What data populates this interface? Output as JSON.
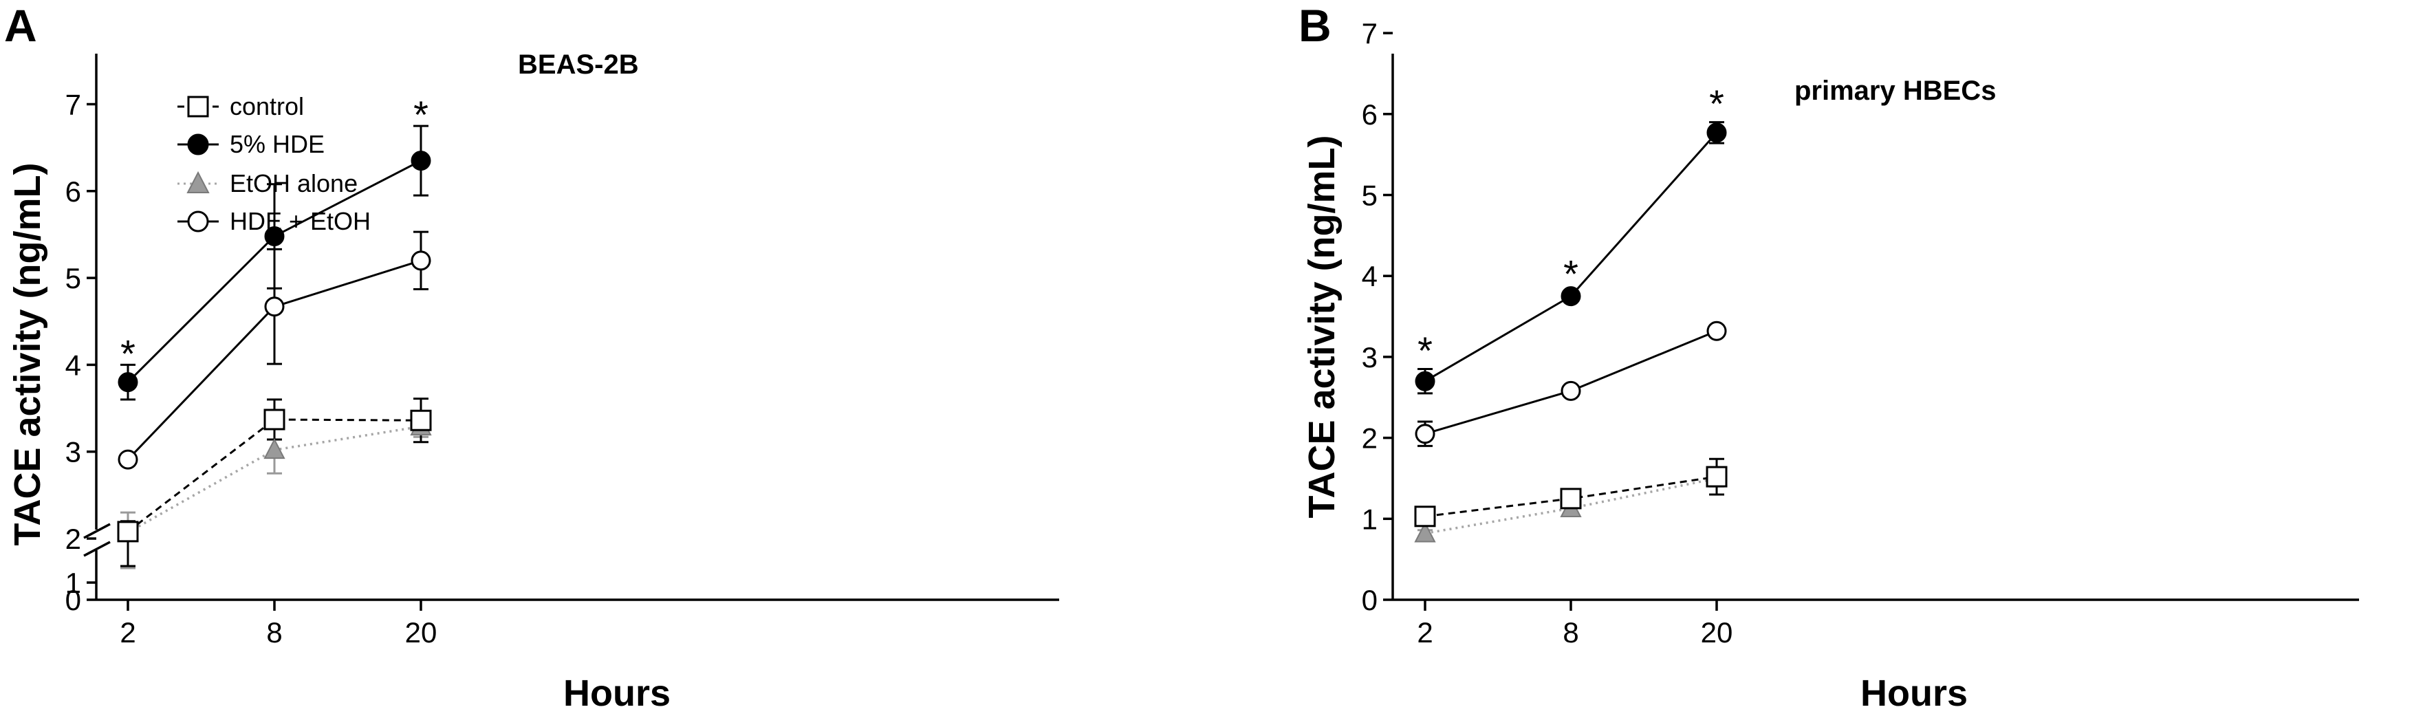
{
  "chart_data": [
    {
      "type": "line",
      "panel_label": "A",
      "title": "BEAS-2B",
      "xlabel": "Hours",
      "ylabel": "TACE activity (ng/mL)",
      "x": [
        2,
        8,
        20
      ],
      "x_tick_labels": [
        "2",
        "8",
        "20"
      ],
      "y_ticks_lower": [
        0,
        1
      ],
      "y_ticks_upper": [
        2,
        3,
        4,
        5,
        6,
        7
      ],
      "y_axis_break": true,
      "grid": false,
      "legend": {
        "placement": "top-left",
        "entries": [
          "control",
          "5% HDE",
          "EtOH alone",
          "HDE + EtOH"
        ]
      },
      "series": [
        {
          "name": "control",
          "marker": "open-square",
          "line": "dashed",
          "color": "#000000",
          "values": [
            2.08,
            3.37,
            3.36
          ],
          "errors": [
            0.12,
            0.23,
            0.25
          ]
        },
        {
          "name": "5% HDE",
          "marker": "filled-circle",
          "line": "solid",
          "color": "#000000",
          "values": [
            3.8,
            5.48,
            6.35
          ],
          "errors": [
            0.2,
            0.6,
            0.4
          ]
        },
        {
          "name": "EtOH alone",
          "marker": "gray-triangle",
          "line": "dotted",
          "color": "#a6a6a6",
          "values": [
            2.07,
            3.02,
            3.29
          ],
          "errors": [
            0.23,
            0.27,
            0.12
          ]
        },
        {
          "name": "HDE + EtOH",
          "marker": "open-circle",
          "line": "solid",
          "color": "#000000",
          "values": [
            2.91,
            4.67,
            5.2
          ],
          "errors": [
            0.03,
            0.66,
            0.33
          ]
        }
      ],
      "annotations": [
        {
          "text": "*",
          "x": 2,
          "y": 4.15
        },
        {
          "text": "*",
          "x": 20,
          "y": 6.9
        }
      ]
    },
    {
      "type": "line",
      "panel_label": "B",
      "title": "primary HBECs",
      "xlabel": "Hours",
      "ylabel": "TACE activity (ng/mL)",
      "x": [
        2,
        8,
        20
      ],
      "x_tick_labels": [
        "2",
        "8",
        "20"
      ],
      "y_ticks": [
        0,
        1,
        2,
        3,
        4,
        5,
        6,
        7
      ],
      "ylim": [
        0,
        7
      ],
      "grid": false,
      "series": [
        {
          "name": "control",
          "marker": "open-square",
          "line": "dashed",
          "color": "#000000",
          "values": [
            1.03,
            1.25,
            1.52
          ],
          "errors": [
            0.05,
            0.04,
            0.22
          ]
        },
        {
          "name": "5% HDE",
          "marker": "filled-circle",
          "line": "solid",
          "color": "#000000",
          "values": [
            2.7,
            3.75,
            5.77
          ],
          "errors": [
            0.15,
            0.04,
            0.13
          ]
        },
        {
          "name": "EtOH alone",
          "marker": "gray-triangle",
          "line": "dotted",
          "color": "#a6a6a6",
          "values": [
            0.82,
            1.13,
            1.5
          ],
          "errors": [
            0.04,
            0.05,
            0.1
          ]
        },
        {
          "name": "HDE + EtOH",
          "marker": "open-circle",
          "line": "solid",
          "color": "#000000",
          "values": [
            2.05,
            2.58,
            3.32
          ],
          "errors": [
            0.15,
            0.04,
            0.04
          ]
        }
      ],
      "annotations": [
        {
          "text": "*",
          "x": 2,
          "y": 3.1
        },
        {
          "text": "*",
          "x": 8,
          "y": 4.05
        },
        {
          "text": "*",
          "x": 20,
          "y": 6.15
        }
      ]
    }
  ]
}
